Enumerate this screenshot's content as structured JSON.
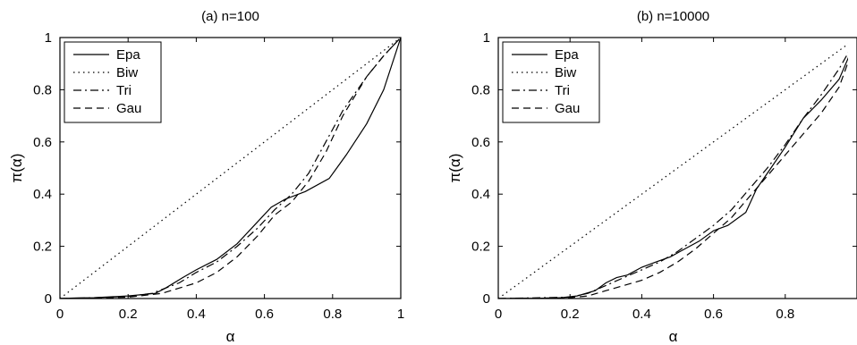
{
  "chart_data": [
    {
      "type": "line",
      "title": "(a)   n=100",
      "xlabel": "α",
      "ylabel": "π(α)",
      "xlim": [
        0,
        1
      ],
      "ylim": [
        0,
        1
      ],
      "xticks": [
        "0",
        "0.2",
        "0.4",
        "0.6",
        "0.8",
        "1"
      ],
      "yticks": [
        "0",
        "0.2",
        "0.4",
        "0.6",
        "0.8",
        "1"
      ],
      "legend_position": "top-left",
      "series": [
        {
          "name": "Epa",
          "dash": "solid",
          "x": [
            0,
            0.05,
            0.1,
            0.2,
            0.28,
            0.31,
            0.36,
            0.4,
            0.46,
            0.52,
            0.57,
            0.62,
            0.66,
            0.72,
            0.79,
            0.84,
            0.9,
            0.95,
            1.0
          ],
          "y": [
            0,
            0.002,
            0.003,
            0.01,
            0.02,
            0.04,
            0.08,
            0.11,
            0.15,
            0.21,
            0.28,
            0.35,
            0.38,
            0.41,
            0.46,
            0.55,
            0.67,
            0.8,
            1.0
          ]
        },
        {
          "name": "Biw",
          "dash": "dotted",
          "x": [
            0,
            1
          ],
          "y": [
            0,
            1
          ]
        },
        {
          "name": "Tri",
          "dash": "dashdot",
          "x": [
            0,
            0.1,
            0.2,
            0.27,
            0.31,
            0.35,
            0.4,
            0.46,
            0.52,
            0.58,
            0.63,
            0.68,
            0.73,
            0.78,
            0.83,
            0.9,
            0.95,
            1.0
          ],
          "y": [
            0,
            0.003,
            0.008,
            0.02,
            0.04,
            0.06,
            0.1,
            0.14,
            0.2,
            0.27,
            0.34,
            0.4,
            0.48,
            0.6,
            0.72,
            0.85,
            0.93,
            1.0
          ]
        },
        {
          "name": "Gau",
          "dash": "dashed",
          "x": [
            0,
            0.1,
            0.2,
            0.3,
            0.35,
            0.4,
            0.46,
            0.52,
            0.58,
            0.63,
            0.68,
            0.73,
            0.78,
            0.83,
            0.9,
            0.95,
            1.0
          ],
          "y": [
            0,
            0.002,
            0.005,
            0.02,
            0.04,
            0.06,
            0.1,
            0.16,
            0.24,
            0.32,
            0.37,
            0.45,
            0.56,
            0.7,
            0.85,
            0.93,
            1.0
          ]
        }
      ]
    },
    {
      "type": "line",
      "title": "(b)   n=10000",
      "xlabel": "α",
      "ylabel": "π(α)",
      "xlim": [
        0,
        1
      ],
      "ylim": [
        0,
        1
      ],
      "xticks": [
        "0",
        "0.2",
        "0.4",
        "0.6",
        "0.8"
      ],
      "yticks": [
        "0",
        "0.2",
        "0.4",
        "0.6",
        "0.8",
        "1"
      ],
      "legend_position": "top-left",
      "series": [
        {
          "name": "Epa",
          "dash": "solid",
          "x": [
            0,
            0.1,
            0.17,
            0.22,
            0.27,
            0.3,
            0.33,
            0.36,
            0.4,
            0.44,
            0.48,
            0.52,
            0.56,
            0.6,
            0.64,
            0.69,
            0.72,
            0.76,
            0.8,
            0.85,
            0.9,
            0.95,
            1.0
          ],
          "y": [
            0,
            0.001,
            0.002,
            0.01,
            0.03,
            0.06,
            0.08,
            0.09,
            0.12,
            0.14,
            0.16,
            0.19,
            0.22,
            0.26,
            0.28,
            0.33,
            0.42,
            0.5,
            0.58,
            0.69,
            0.76,
            0.84,
            1.0
          ]
        },
        {
          "name": "Biw",
          "dash": "dotted",
          "x": [
            0,
            1
          ],
          "y": [
            0,
            1
          ]
        },
        {
          "name": "Tri",
          "dash": "dashdot",
          "x": [
            0,
            0.2,
            0.25,
            0.3,
            0.35,
            0.4,
            0.45,
            0.5,
            0.55,
            0.6,
            0.65,
            0.7,
            0.75,
            0.8,
            0.85,
            0.9,
            0.95,
            1.0
          ],
          "y": [
            0,
            0.005,
            0.02,
            0.05,
            0.08,
            0.11,
            0.14,
            0.18,
            0.23,
            0.28,
            0.34,
            0.42,
            0.5,
            0.59,
            0.69,
            0.78,
            0.88,
            1.0
          ]
        },
        {
          "name": "Gau",
          "dash": "dashed",
          "x": [
            0,
            0.2,
            0.25,
            0.3,
            0.35,
            0.4,
            0.45,
            0.5,
            0.55,
            0.6,
            0.65,
            0.7,
            0.75,
            0.8,
            0.85,
            0.9,
            0.95,
            1.0
          ],
          "y": [
            0,
            0.003,
            0.01,
            0.03,
            0.05,
            0.07,
            0.1,
            0.14,
            0.19,
            0.25,
            0.31,
            0.39,
            0.47,
            0.55,
            0.63,
            0.71,
            0.81,
            1.0
          ]
        }
      ]
    }
  ]
}
